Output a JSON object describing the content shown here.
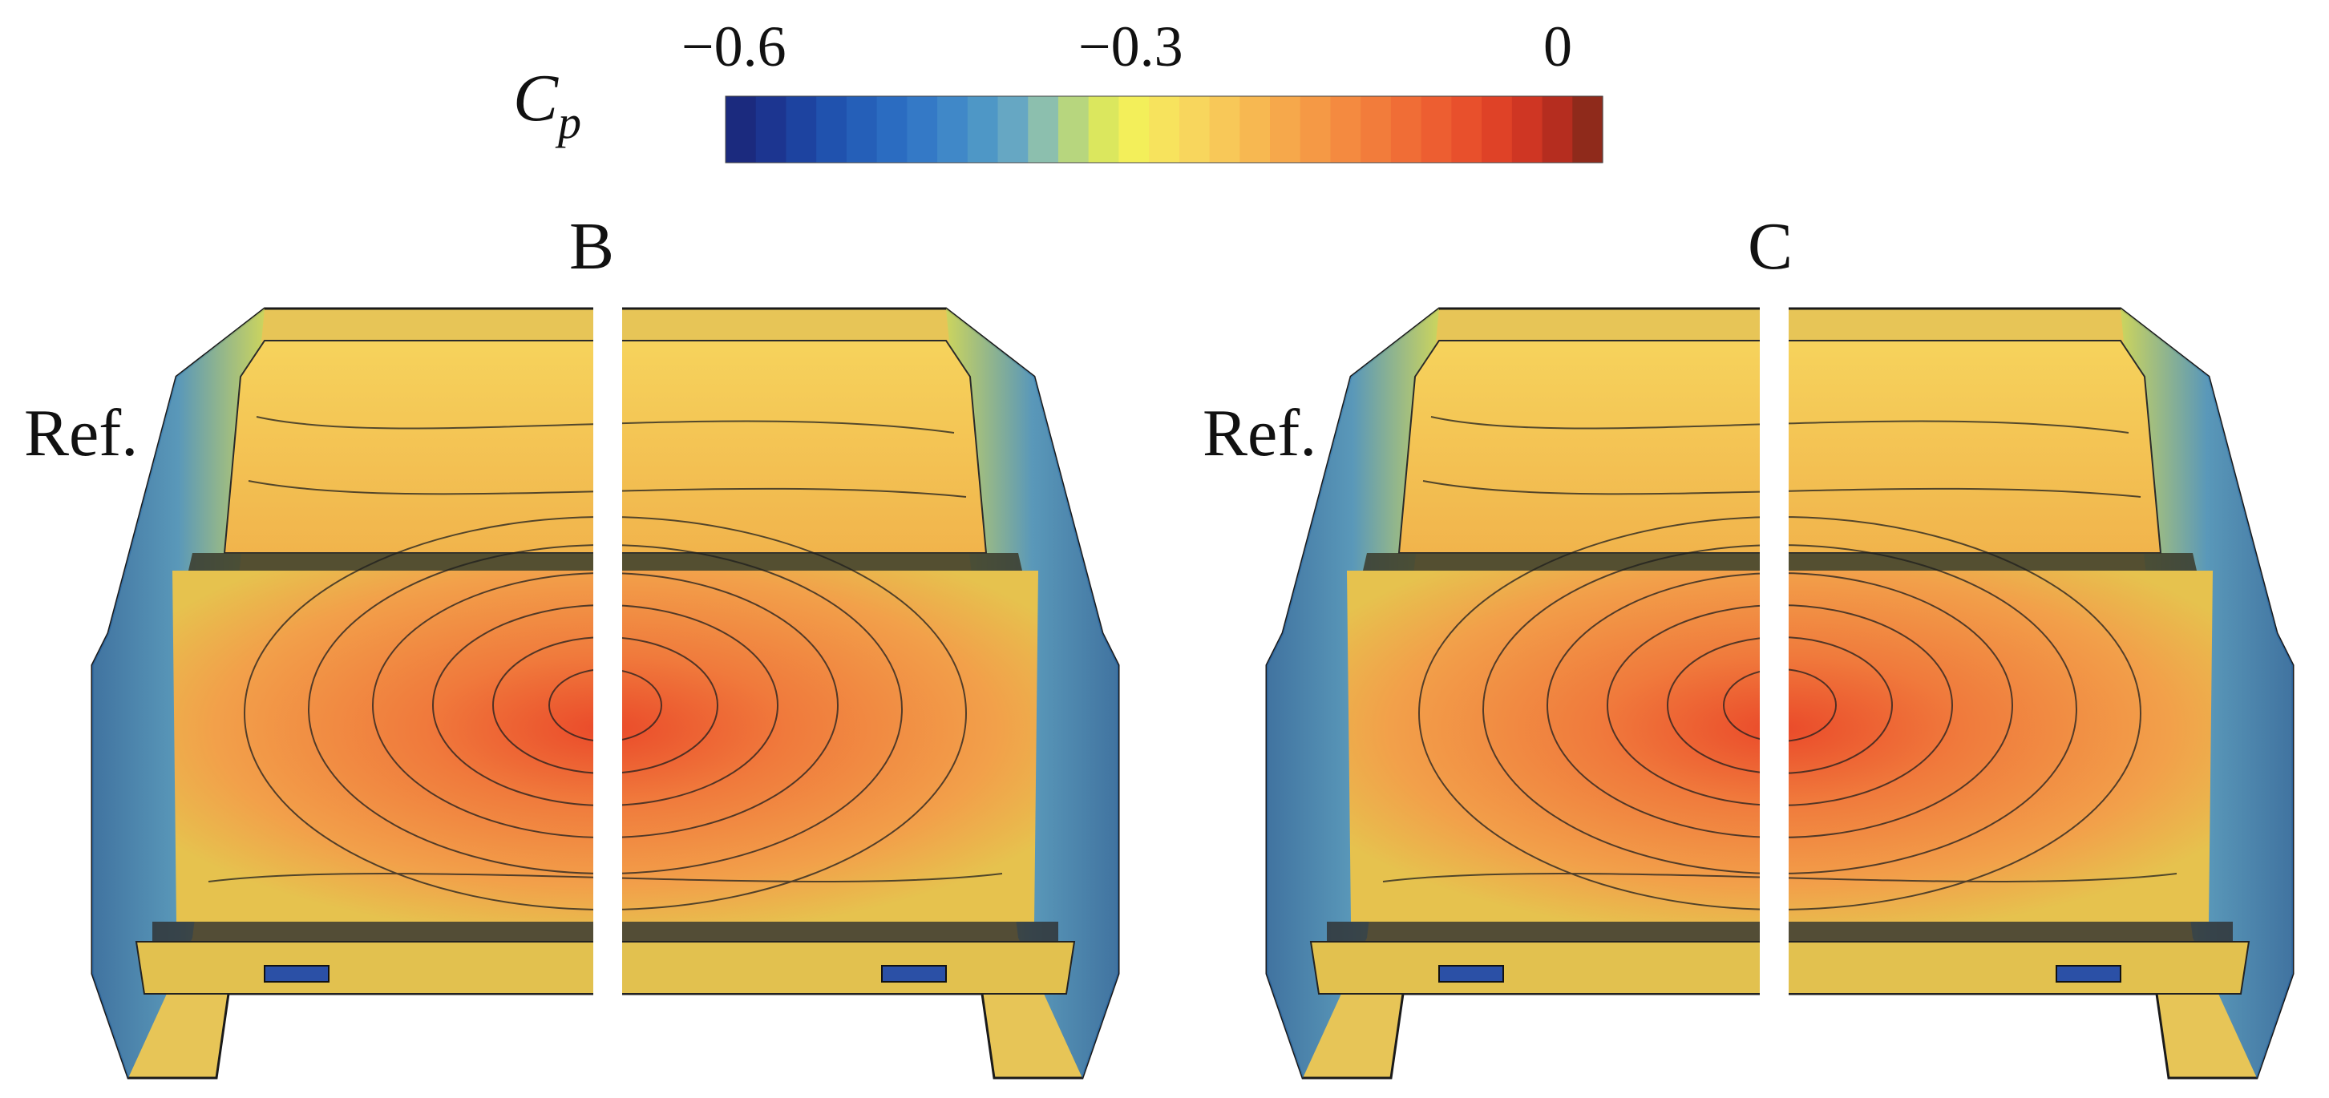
{
  "colorbar": {
    "symbol": "C",
    "subscript": "p",
    "tick_labels": [
      "−0.6",
      "−0.3",
      "0"
    ],
    "colors": [
      "#1b2a7e",
      "#1c3590",
      "#1d43a0",
      "#2052ae",
      "#255fb8",
      "#2b6cc1",
      "#3479c6",
      "#4088c8",
      "#4e97c6",
      "#66a7c3",
      "#8cbfae",
      "#b7d67e",
      "#dbe75e",
      "#f3ef5a",
      "#f7e35d",
      "#f8d65d",
      "#f8c858",
      "#f7b851",
      "#f6a84b",
      "#f59945",
      "#f48a40",
      "#f27c3b",
      "#f06d36",
      "#ed5e31",
      "#e8502c",
      "#df4227",
      "#cf3623",
      "#b52d1f",
      "#8f2a1b"
    ]
  },
  "panels": [
    {
      "label": "B",
      "ref_label": "Ref."
    },
    {
      "label": "C",
      "ref_label": "Ref."
    }
  ]
}
